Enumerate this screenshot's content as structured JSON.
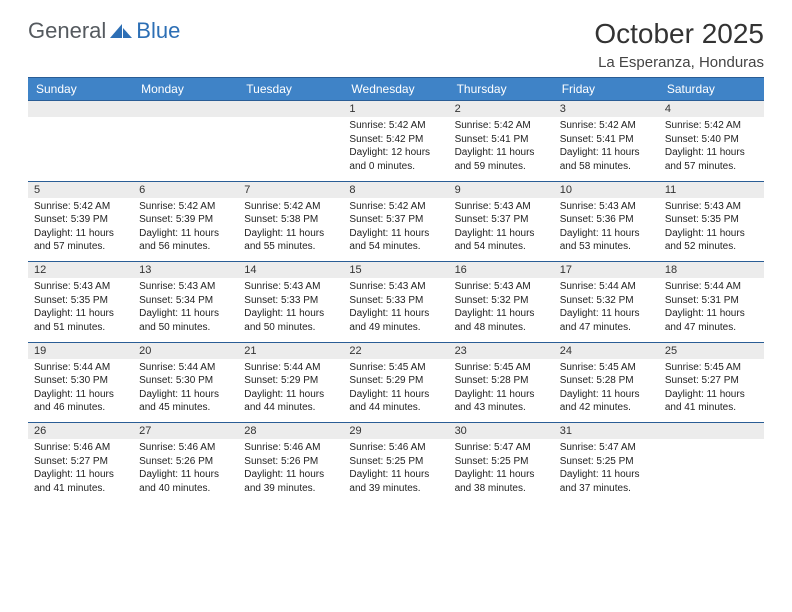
{
  "logo": {
    "text_part1": "General",
    "text_part2": "Blue"
  },
  "title": "October 2025",
  "location": "La Esperanza, Honduras",
  "colors": {
    "header_bg": "#3f83c7",
    "header_text": "#ffffff",
    "day_row_bg": "#ececec",
    "rule": "#2a5d95",
    "logo_dark": "#555a5f",
    "logo_blue": "#2d6fb5"
  },
  "day_names": [
    "Sunday",
    "Monday",
    "Tuesday",
    "Wednesday",
    "Thursday",
    "Friday",
    "Saturday"
  ],
  "weeks": [
    [
      null,
      null,
      null,
      {
        "n": "1",
        "sunrise": "5:42 AM",
        "sunset": "5:42 PM",
        "daylight": "12 hours and 0 minutes."
      },
      {
        "n": "2",
        "sunrise": "5:42 AM",
        "sunset": "5:41 PM",
        "daylight": "11 hours and 59 minutes."
      },
      {
        "n": "3",
        "sunrise": "5:42 AM",
        "sunset": "5:41 PM",
        "daylight": "11 hours and 58 minutes."
      },
      {
        "n": "4",
        "sunrise": "5:42 AM",
        "sunset": "5:40 PM",
        "daylight": "11 hours and 57 minutes."
      }
    ],
    [
      {
        "n": "5",
        "sunrise": "5:42 AM",
        "sunset": "5:39 PM",
        "daylight": "11 hours and 57 minutes."
      },
      {
        "n": "6",
        "sunrise": "5:42 AM",
        "sunset": "5:39 PM",
        "daylight": "11 hours and 56 minutes."
      },
      {
        "n": "7",
        "sunrise": "5:42 AM",
        "sunset": "5:38 PM",
        "daylight": "11 hours and 55 minutes."
      },
      {
        "n": "8",
        "sunrise": "5:42 AM",
        "sunset": "5:37 PM",
        "daylight": "11 hours and 54 minutes."
      },
      {
        "n": "9",
        "sunrise": "5:43 AM",
        "sunset": "5:37 PM",
        "daylight": "11 hours and 54 minutes."
      },
      {
        "n": "10",
        "sunrise": "5:43 AM",
        "sunset": "5:36 PM",
        "daylight": "11 hours and 53 minutes."
      },
      {
        "n": "11",
        "sunrise": "5:43 AM",
        "sunset": "5:35 PM",
        "daylight": "11 hours and 52 minutes."
      }
    ],
    [
      {
        "n": "12",
        "sunrise": "5:43 AM",
        "sunset": "5:35 PM",
        "daylight": "11 hours and 51 minutes."
      },
      {
        "n": "13",
        "sunrise": "5:43 AM",
        "sunset": "5:34 PM",
        "daylight": "11 hours and 50 minutes."
      },
      {
        "n": "14",
        "sunrise": "5:43 AM",
        "sunset": "5:33 PM",
        "daylight": "11 hours and 50 minutes."
      },
      {
        "n": "15",
        "sunrise": "5:43 AM",
        "sunset": "5:33 PM",
        "daylight": "11 hours and 49 minutes."
      },
      {
        "n": "16",
        "sunrise": "5:43 AM",
        "sunset": "5:32 PM",
        "daylight": "11 hours and 48 minutes."
      },
      {
        "n": "17",
        "sunrise": "5:44 AM",
        "sunset": "5:32 PM",
        "daylight": "11 hours and 47 minutes."
      },
      {
        "n": "18",
        "sunrise": "5:44 AM",
        "sunset": "5:31 PM",
        "daylight": "11 hours and 47 minutes."
      }
    ],
    [
      {
        "n": "19",
        "sunrise": "5:44 AM",
        "sunset": "5:30 PM",
        "daylight": "11 hours and 46 minutes."
      },
      {
        "n": "20",
        "sunrise": "5:44 AM",
        "sunset": "5:30 PM",
        "daylight": "11 hours and 45 minutes."
      },
      {
        "n": "21",
        "sunrise": "5:44 AM",
        "sunset": "5:29 PM",
        "daylight": "11 hours and 44 minutes."
      },
      {
        "n": "22",
        "sunrise": "5:45 AM",
        "sunset": "5:29 PM",
        "daylight": "11 hours and 44 minutes."
      },
      {
        "n": "23",
        "sunrise": "5:45 AM",
        "sunset": "5:28 PM",
        "daylight": "11 hours and 43 minutes."
      },
      {
        "n": "24",
        "sunrise": "5:45 AM",
        "sunset": "5:28 PM",
        "daylight": "11 hours and 42 minutes."
      },
      {
        "n": "25",
        "sunrise": "5:45 AM",
        "sunset": "5:27 PM",
        "daylight": "11 hours and 41 minutes."
      }
    ],
    [
      {
        "n": "26",
        "sunrise": "5:46 AM",
        "sunset": "5:27 PM",
        "daylight": "11 hours and 41 minutes."
      },
      {
        "n": "27",
        "sunrise": "5:46 AM",
        "sunset": "5:26 PM",
        "daylight": "11 hours and 40 minutes."
      },
      {
        "n": "28",
        "sunrise": "5:46 AM",
        "sunset": "5:26 PM",
        "daylight": "11 hours and 39 minutes."
      },
      {
        "n": "29",
        "sunrise": "5:46 AM",
        "sunset": "5:25 PM",
        "daylight": "11 hours and 39 minutes."
      },
      {
        "n": "30",
        "sunrise": "5:47 AM",
        "sunset": "5:25 PM",
        "daylight": "11 hours and 38 minutes."
      },
      {
        "n": "31",
        "sunrise": "5:47 AM",
        "sunset": "5:25 PM",
        "daylight": "11 hours and 37 minutes."
      },
      null
    ]
  ],
  "labels": {
    "sunrise": "Sunrise:",
    "sunset": "Sunset:",
    "daylight": "Daylight:"
  }
}
